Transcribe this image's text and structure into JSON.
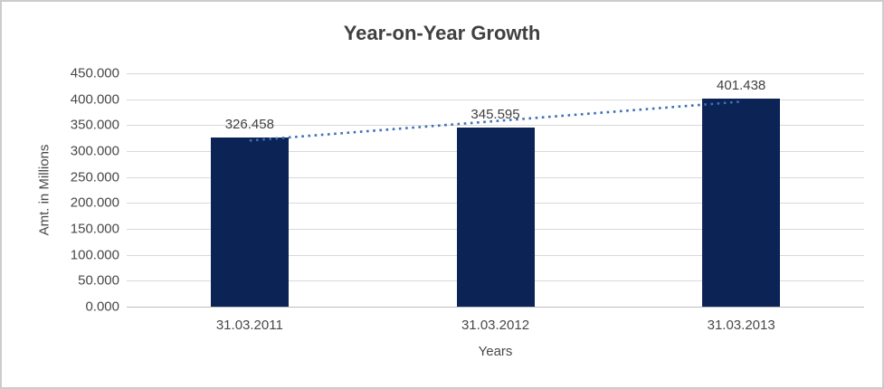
{
  "chart_data": {
    "type": "bar",
    "title": "Year-on-Year Growth",
    "xlabel": "Years",
    "ylabel": "Amt. in Millions",
    "categories": [
      "31.03.2011",
      "31.03.2012",
      "31.03.2013"
    ],
    "values": [
      326.458,
      345.595,
      401.438
    ],
    "data_labels": [
      "326.458",
      "345.595",
      "401.438"
    ],
    "ylim": [
      0,
      450
    ],
    "ytick_step": 50,
    "ytick_labels": [
      "0.000",
      "50.000",
      "100.000",
      "150.000",
      "200.000",
      "250.000",
      "300.000",
      "350.000",
      "400.000",
      "450.000"
    ],
    "grid": true,
    "legend": "none",
    "trendline": {
      "kind": "linear",
      "style": "dotted"
    },
    "colors": {
      "bar": "#0c2356",
      "trendline": "#3e6fb7",
      "gridline": "#d9d9d9",
      "axis_line": "#bfbfbf",
      "title_text": "#404040",
      "axis_text": "#484848"
    }
  }
}
